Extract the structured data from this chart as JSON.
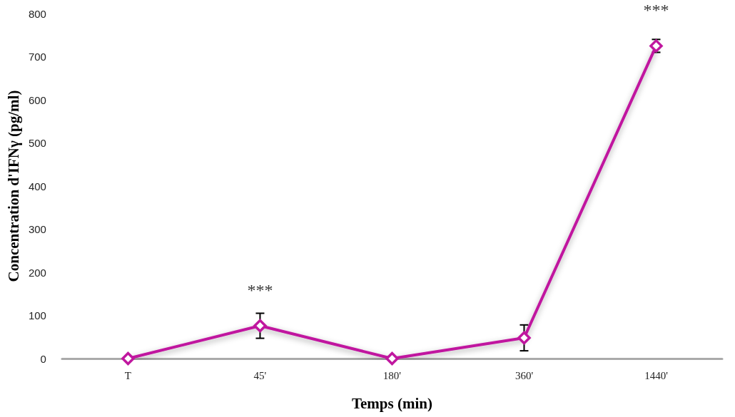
{
  "chart_data": {
    "type": "line",
    "xlabel": "Temps (min)",
    "ylabel": "Concentration d'IFNγ (pg/ml)",
    "categories": [
      "T",
      "45'",
      "180'",
      "360'",
      "1440'"
    ],
    "series": [
      {
        "color": "#c0179f",
        "values": [
          0,
          76,
          0,
          48,
          725
        ],
        "errors": [
          null,
          29,
          null,
          30,
          15
        ]
      }
    ],
    "ylim": [
      0,
      800
    ],
    "yticks": [
      0,
      100,
      200,
      300,
      400,
      500,
      600,
      700,
      800
    ],
    "grid": false,
    "marker": "diamond",
    "line_style": "solid",
    "annotations": [
      {
        "text": "***",
        "x": "45'",
        "y": 76
      },
      {
        "text": "***",
        "x": "1440'",
        "y": 725
      }
    ]
  }
}
